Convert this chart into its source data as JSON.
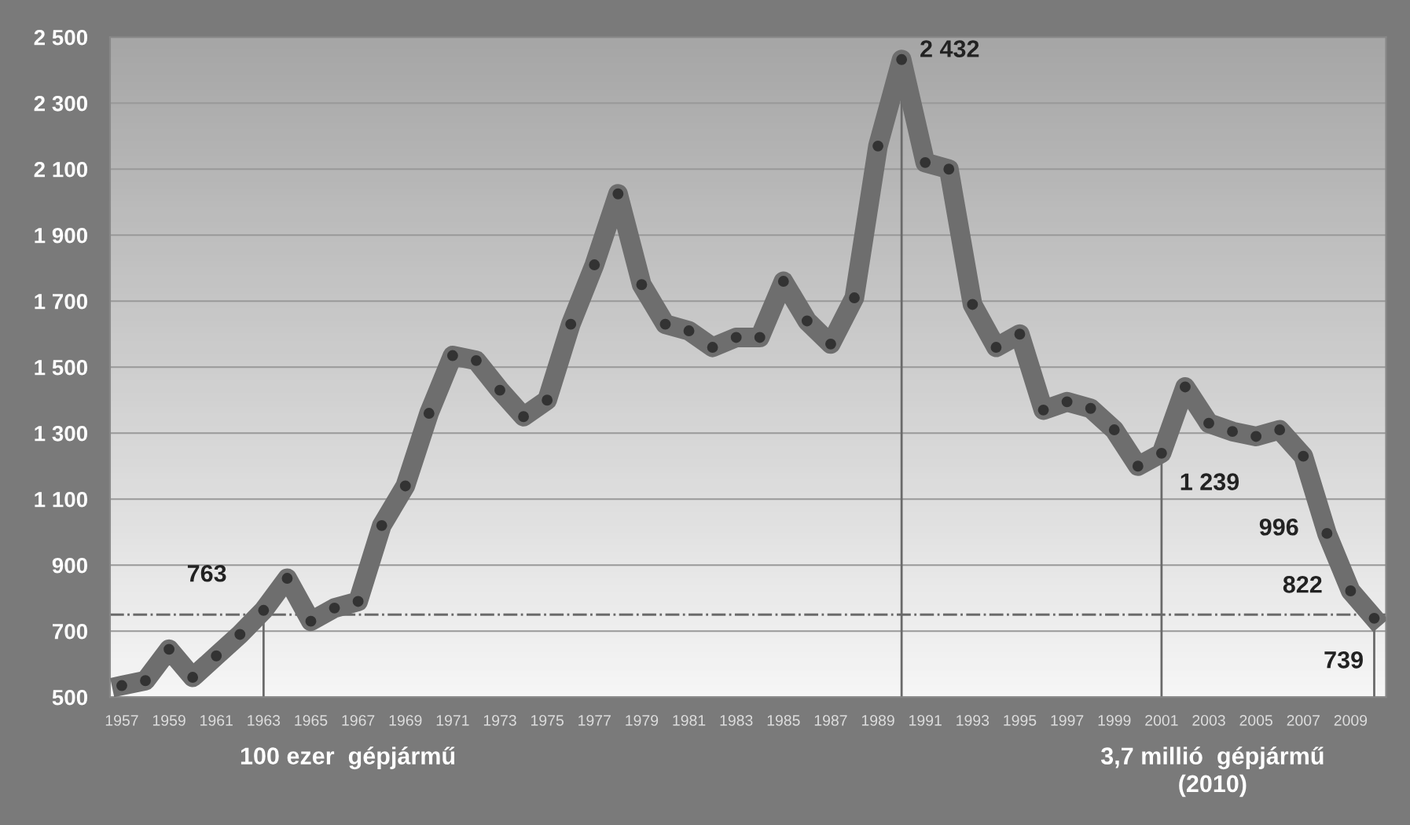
{
  "chart_data": {
    "type": "line",
    "x": [
      1957,
      1958,
      1959,
      1960,
      1961,
      1962,
      1963,
      1964,
      1965,
      1966,
      1967,
      1968,
      1969,
      1970,
      1971,
      1972,
      1973,
      1974,
      1975,
      1976,
      1977,
      1978,
      1979,
      1980,
      1981,
      1982,
      1983,
      1984,
      1985,
      1986,
      1987,
      1988,
      1989,
      1990,
      1991,
      1992,
      1993,
      1994,
      1995,
      1996,
      1997,
      1998,
      1999,
      2000,
      2001,
      2002,
      2003,
      2004,
      2005,
      2006,
      2007,
      2008,
      2009,
      2010
    ],
    "series": [
      {
        "color": "#6e6e6e",
        "values": [
          535,
          550,
          645,
          560,
          625,
          690,
          763,
          860,
          730,
          770,
          790,
          1020,
          1140,
          1360,
          1535,
          1520,
          1430,
          1350,
          1400,
          1630,
          1810,
          2025,
          1750,
          1630,
          1610,
          1560,
          1590,
          1590,
          1760,
          1640,
          1570,
          1710,
          2170,
          2432,
          2120,
          2100,
          1690,
          1560,
          1600,
          1370,
          1395,
          1375,
          1310,
          1200,
          1239,
          1440,
          1330,
          1305,
          1290,
          1310,
          1230,
          996,
          822,
          739
        ],
        "value_labels": [
          null,
          null,
          null,
          null,
          null,
          null,
          "763",
          null,
          null,
          null,
          null,
          null,
          null,
          null,
          null,
          null,
          null,
          null,
          null,
          null,
          null,
          null,
          null,
          null,
          null,
          null,
          null,
          null,
          null,
          null,
          null,
          null,
          null,
          "2 432",
          null,
          null,
          null,
          null,
          null,
          null,
          null,
          null,
          null,
          null,
          "1 239",
          null,
          null,
          null,
          null,
          null,
          null,
          "996",
          "822",
          "739"
        ]
      }
    ],
    "xlim": [
      1956.5,
      2010.5
    ],
    "xticks": [
      1957,
      1959,
      1961,
      1963,
      1965,
      1967,
      1969,
      1971,
      1973,
      1975,
      1977,
      1979,
      1981,
      1983,
      1985,
      1987,
      1989,
      1991,
      1993,
      1995,
      1997,
      1999,
      2001,
      2003,
      2005,
      2007,
      2009
    ],
    "ylim": [
      500,
      2500
    ],
    "yticks": [
      {
        "value": 500,
        "label": "500"
      },
      {
        "value": 700,
        "label": "700"
      },
      {
        "value": 900,
        "label": "900"
      },
      {
        "value": 1100,
        "label": "1 100"
      },
      {
        "value": 1300,
        "label": "1 300"
      },
      {
        "value": 1500,
        "label": "1 500"
      },
      {
        "value": 1700,
        "label": "1 700"
      },
      {
        "value": 1900,
        "label": "1 900"
      },
      {
        "value": 2100,
        "label": "2 100"
      },
      {
        "value": 2300,
        "label": "2 300"
      },
      {
        "value": 2500,
        "label": "2 500"
      }
    ],
    "grid": "y",
    "marker": "circle",
    "line_style": "solid",
    "ref_lines": [
      {
        "axis": "y",
        "value": 750,
        "line_style": "dashdot",
        "color": "#6a6a6a"
      },
      {
        "axis": "x",
        "value": 1963,
        "color": "#6a6a6a"
      },
      {
        "axis": "x",
        "value": 1990,
        "color": "#6a6a6a"
      },
      {
        "axis": "x",
        "value": 2001,
        "color": "#6a6a6a"
      },
      {
        "axis": "x",
        "value": 2010,
        "color": "#6a6a6a"
      }
    ],
    "annotations": [
      "100 ezer  gépjármű",
      "3,7 millió  gépjármű\n(2010)"
    ]
  }
}
